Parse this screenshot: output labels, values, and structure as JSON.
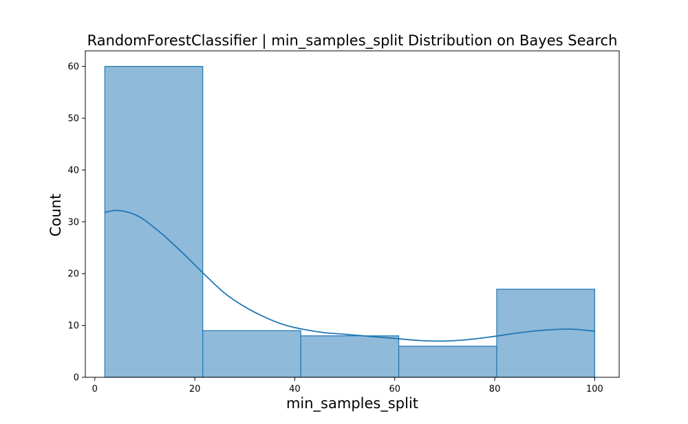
{
  "chart_data": {
    "type": "bar",
    "title": "RandomForestClassifier | min_samples_split Distribution on Bayes Search",
    "xlabel": "min_samples_split",
    "ylabel": "Count",
    "xlim": [
      -1.9,
      104.9
    ],
    "ylim": [
      0,
      63
    ],
    "x_ticks": [
      0,
      20,
      40,
      60,
      80,
      100
    ],
    "y_ticks": [
      0,
      10,
      20,
      30,
      40,
      50,
      60
    ],
    "bins": [
      {
        "start": 2,
        "end": 21.6,
        "count": 60
      },
      {
        "start": 21.6,
        "end": 41.2,
        "count": 9
      },
      {
        "start": 41.2,
        "end": 60.8,
        "count": 8
      },
      {
        "start": 60.8,
        "end": 80.4,
        "count": 6
      },
      {
        "start": 80.4,
        "end": 100,
        "count": 17
      }
    ],
    "kde": {
      "x": [
        2,
        4,
        6,
        8,
        10,
        14,
        18,
        22,
        26,
        30,
        34,
        38,
        42,
        46,
        50,
        55,
        60,
        65,
        70,
        75,
        80,
        85,
        90,
        95,
        100
      ],
      "y": [
        31.8,
        32.2,
        32.0,
        31.4,
        30.3,
        27.2,
        23.6,
        19.8,
        16.2,
        13.6,
        11.6,
        10.1,
        9.2,
        8.6,
        8.3,
        7.9,
        7.5,
        7.1,
        7.0,
        7.3,
        7.9,
        8.6,
        9.1,
        9.3,
        8.9
      ]
    },
    "grid": false,
    "colors": {
      "bar_fill": "#8fbad9",
      "bar_edge": "#1f77b4",
      "kde_line": "#1f77b4"
    }
  }
}
